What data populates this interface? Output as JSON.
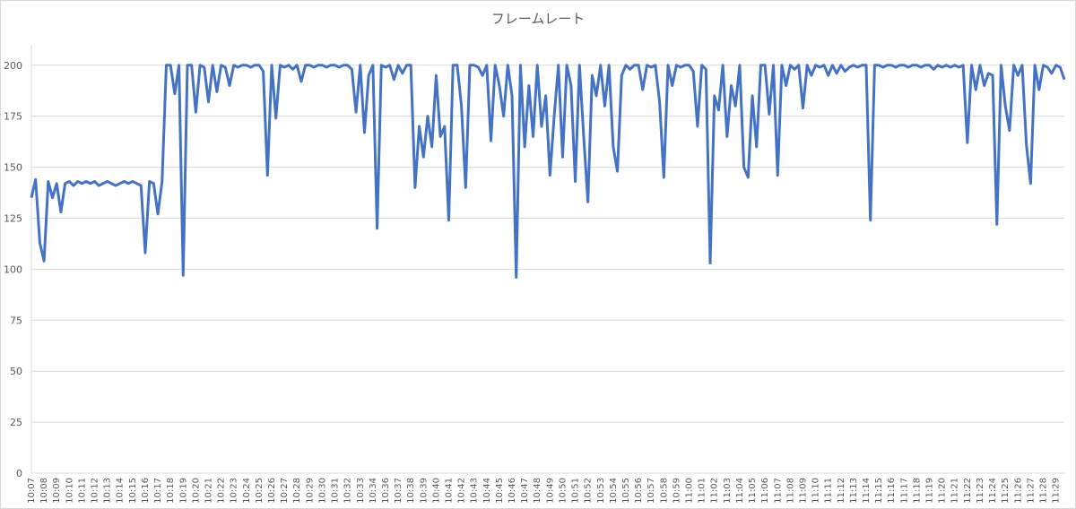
{
  "chart_data": {
    "type": "line",
    "title": "フレームレート",
    "categories": [
      "10:07",
      null,
      null,
      "10:08",
      null,
      null,
      "10:09",
      null,
      null,
      "10:10",
      null,
      null,
      "10:11",
      null,
      null,
      "10:12",
      null,
      null,
      "10:13",
      null,
      null,
      "10:14",
      null,
      null,
      "10:15",
      null,
      null,
      "10:16",
      null,
      null,
      "10:17",
      null,
      null,
      "10:18",
      null,
      null,
      "10:19",
      null,
      null,
      "10:20",
      null,
      null,
      "10:21",
      null,
      null,
      "10:22",
      null,
      null,
      "10:23",
      null,
      null,
      "10:24",
      null,
      null,
      "10:25",
      null,
      null,
      "10:26",
      null,
      null,
      "10:27",
      null,
      null,
      "10:28",
      null,
      null,
      "10:29",
      null,
      null,
      "10:30",
      null,
      null,
      "10:31",
      null,
      null,
      "10:32",
      null,
      null,
      "10:33",
      null,
      null,
      "10:34",
      null,
      null,
      "10:36",
      null,
      null,
      "10:37",
      null,
      null,
      "10:38",
      null,
      null,
      "10:39",
      null,
      null,
      "10:40",
      null,
      null,
      "10:41",
      null,
      null,
      "10:42",
      null,
      null,
      "10:43",
      null,
      null,
      "10:44",
      null,
      null,
      "10:45",
      null,
      null,
      "10:46",
      null,
      null,
      "10:47",
      null,
      null,
      "10:48",
      null,
      null,
      "10:49",
      null,
      null,
      "10:50",
      null,
      null,
      "10:51",
      null,
      null,
      "10:52",
      null,
      null,
      "10:53",
      null,
      null,
      "10:54",
      null,
      null,
      "10:55",
      null,
      null,
      "10:56",
      null,
      null,
      "10:57",
      null,
      null,
      "10:58",
      null,
      null,
      "10:59",
      null,
      null,
      "11:00",
      null,
      null,
      "11:01",
      null,
      null,
      "11:02",
      null,
      null,
      "11:03",
      null,
      null,
      "11:04",
      null,
      null,
      "11:05",
      null,
      null,
      "11:06",
      null,
      null,
      "11:07",
      null,
      null,
      "11:08",
      null,
      null,
      "11:09",
      null,
      null,
      "11:10",
      null,
      null,
      "11:11",
      null,
      null,
      "11:12",
      null,
      null,
      "11:13",
      null,
      null,
      "11:14",
      null,
      null,
      "11:15",
      null,
      null,
      "11:16",
      null,
      null,
      "11:17",
      null,
      null,
      "11:18",
      null,
      null,
      "11:19",
      null,
      null,
      "11:20",
      null,
      null,
      "11:21",
      null,
      null,
      "11:22",
      null,
      null,
      "11:23",
      null,
      null,
      "11:24",
      null,
      null,
      "11:25",
      null,
      null,
      "11:26",
      null,
      null,
      "11:27",
      null,
      null,
      "11:28",
      null,
      null,
      "11:29",
      null,
      null
    ],
    "values": [
      135,
      144,
      113,
      104,
      143,
      135,
      142,
      128,
      142,
      143,
      141,
      143,
      142,
      143,
      142,
      143,
      141,
      142,
      143,
      142,
      141,
      142,
      143,
      142,
      143,
      142,
      141,
      108,
      143,
      142,
      127,
      143,
      200,
      200,
      186,
      200,
      97,
      200,
      200,
      177,
      200,
      199,
      182,
      200,
      187,
      200,
      199,
      190,
      200,
      199,
      200,
      200,
      199,
      200,
      200,
      197,
      146,
      200,
      174,
      200,
      199,
      200,
      198,
      200,
      192,
      200,
      200,
      199,
      200,
      200,
      199,
      200,
      200,
      199,
      200,
      200,
      198,
      177,
      200,
      167,
      195,
      200,
      120,
      200,
      199,
      200,
      193,
      200,
      196,
      200,
      200,
      140,
      170,
      155,
      175,
      160,
      195,
      165,
      170,
      124,
      200,
      200,
      180,
      140,
      200,
      200,
      199,
      195,
      200,
      163,
      200,
      190,
      175,
      200,
      185,
      96,
      200,
      160,
      190,
      165,
      200,
      170,
      185,
      146,
      175,
      200,
      155,
      200,
      190,
      143,
      200,
      165,
      133,
      195,
      185,
      200,
      180,
      200,
      160,
      148,
      195,
      200,
      198,
      200,
      200,
      188,
      200,
      199,
      200,
      182,
      145,
      200,
      190,
      200,
      199,
      200,
      200,
      197,
      170,
      200,
      198,
      103,
      185,
      178,
      200,
      165,
      190,
      180,
      200,
      150,
      145,
      185,
      160,
      200,
      200,
      176,
      200,
      146,
      200,
      190,
      200,
      198,
      200,
      179,
      200,
      195,
      200,
      199,
      200,
      195,
      200,
      196,
      200,
      197,
      199,
      200,
      199,
      200,
      200,
      124,
      200,
      200,
      199,
      200,
      200,
      199,
      200,
      200,
      199,
      200,
      200,
      199,
      200,
      200,
      198,
      200,
      199,
      200,
      199,
      200,
      199,
      200,
      162,
      200,
      188,
      200,
      190,
      196,
      195,
      122,
      200,
      180,
      168,
      200,
      195,
      200,
      161,
      142,
      200,
      188,
      200,
      199,
      196,
      200,
      199,
      193
    ],
    "color": "#4472c4",
    "ylim": [
      0,
      210
    ],
    "yticks": [
      0,
      25,
      50,
      75,
      100,
      125,
      150,
      175,
      200
    ],
    "grid": true
  }
}
